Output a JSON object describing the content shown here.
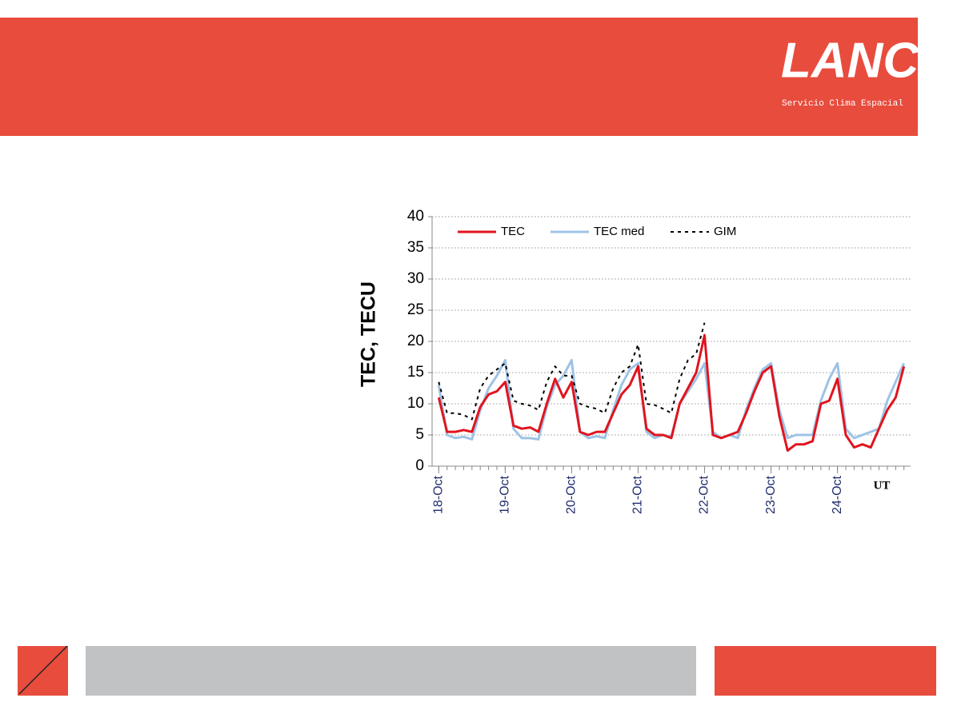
{
  "header": {
    "logo": "LANC",
    "tagline": "Servicio Clima Espacial"
  },
  "chart_data": {
    "type": "line",
    "y_label": "TEC, TECU",
    "x_label": "UT",
    "x": [
      0,
      0.125,
      0.25,
      0.375,
      0.5,
      0.625,
      0.75,
      0.875,
      1,
      1.125,
      1.25,
      1.375,
      1.5,
      1.625,
      1.75,
      1.875,
      2,
      2.125,
      2.25,
      2.375,
      2.5,
      2.625,
      2.75,
      2.875,
      3,
      3.125,
      3.25,
      3.375,
      3.5,
      3.625,
      3.75,
      3.875,
      4,
      4.125,
      4.25,
      4.375,
      4.5,
      4.625,
      4.75,
      4.875,
      5,
      5.125,
      5.25,
      5.375,
      5.5,
      5.625,
      5.75,
      5.875,
      6,
      6.125,
      6.25,
      6.375,
      6.5,
      6.625,
      6.75,
      6.875,
      7
    ],
    "series": [
      {
        "name": "TEC",
        "color": "#e0141e",
        "dash": false,
        "values": [
          11,
          5.5,
          5.5,
          5.8,
          5.5,
          9.5,
          11.5,
          12,
          13.5,
          6.5,
          6,
          6.2,
          5.5,
          10,
          14,
          11,
          13.5,
          5.5,
          5,
          5.5,
          5.5,
          8.5,
          11.5,
          13,
          16,
          6,
          5,
          5,
          4.5,
          10,
          12.5,
          15,
          21,
          5,
          4.5,
          5,
          5.5,
          8.5,
          12,
          15,
          16,
          8,
          2.5,
          3.5,
          3.5,
          4,
          10,
          10.5,
          14,
          5,
          3,
          3.5,
          3,
          6,
          9,
          11,
          16
        ]
      },
      {
        "name": "TEC med",
        "color": "#9dc3e6",
        "dash": false,
        "values": [
          13,
          5,
          4.5,
          4.7,
          4.3,
          9,
          12.5,
          14.5,
          17,
          6,
          4.5,
          4.5,
          4.3,
          9.5,
          13,
          14.5,
          17,
          5.5,
          4.5,
          4.8,
          4.5,
          9,
          13,
          15.5,
          16.5,
          5.5,
          4.5,
          5,
          4.7,
          10,
          12,
          14,
          16.5,
          5.5,
          4.5,
          5,
          4.5,
          9,
          12.5,
          15.5,
          16.5,
          9,
          4.5,
          5,
          5,
          5,
          10.5,
          14,
          16.5,
          6,
          4.5,
          5,
          5.5,
          6,
          10.5,
          13.5,
          16.5
        ]
      },
      {
        "name": "GIM",
        "color": "#000000",
        "dash": true,
        "values": [
          13.5,
          8.5,
          8.5,
          8.2,
          7.5,
          12.5,
          14.5,
          15.5,
          16.5,
          10.5,
          10,
          9.7,
          9,
          13.5,
          16,
          14.5,
          14.5,
          10,
          9.5,
          9.2,
          8.5,
          12.5,
          15,
          16,
          19.5,
          10,
          9.8,
          9.2,
          8.5,
          14,
          17,
          18,
          23,
          null,
          null,
          null,
          null,
          null,
          null,
          null,
          null,
          null,
          null,
          null,
          null,
          null,
          null,
          null,
          null,
          null,
          null,
          null,
          null,
          null,
          null,
          null,
          null
        ]
      }
    ],
    "xlim": [
      -0.1,
      7.1
    ],
    "xticks": [
      {
        "value": 0,
        "label": "18-Oct"
      },
      {
        "value": 1,
        "label": "19-Oct"
      },
      {
        "value": 2,
        "label": "20-Oct"
      },
      {
        "value": 3,
        "label": "21-Oct"
      },
      {
        "value": 4,
        "label": "22-Oct"
      },
      {
        "value": 5,
        "label": "23-Oct"
      },
      {
        "value": 6,
        "label": "24-Oct"
      }
    ],
    "ylim": [
      0,
      40
    ],
    "yticks": [
      0,
      5,
      10,
      15,
      20,
      25,
      30,
      35,
      40
    ],
    "grid": true,
    "legend": "top"
  }
}
